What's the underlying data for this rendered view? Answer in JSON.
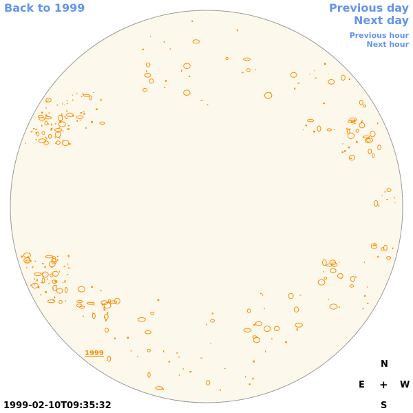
{
  "nav": {
    "back_label": "Back to 1999",
    "previous_day_label": "Previous day",
    "next_day_label": "Next day",
    "previous_hour_label": "Previous hour",
    "next_hour_label": "Next hour"
  },
  "disk": {
    "fill_color": "#fdf8ec",
    "outline_color": "#999999",
    "feature_color": "#ff8c00",
    "year_label": "1999"
  },
  "compass": {
    "north": "N",
    "south": "S",
    "east": "E",
    "west": "W",
    "center": "+"
  },
  "timestamp": "1999-02-10T09:35:32"
}
